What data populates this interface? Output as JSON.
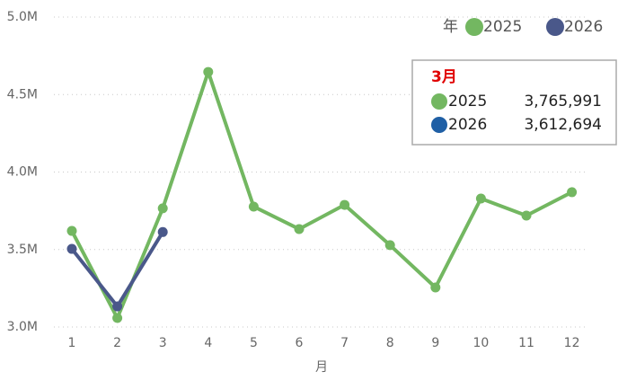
{
  "chart_data": {
    "type": "line",
    "x_label": "月",
    "categories": [
      "1",
      "2",
      "3",
      "4",
      "5",
      "6",
      "7",
      "8",
      "9",
      "10",
      "11",
      "12"
    ],
    "series": [
      {
        "name": "2025",
        "color": "#73b761",
        "values": [
          3620000,
          3058000,
          3765991,
          4646000,
          3777000,
          3632000,
          3788000,
          3528000,
          3255000,
          3829000,
          3719000,
          3870000
        ],
        "value_labels": [
          null,
          null,
          "3,765,991",
          null,
          null,
          null,
          null,
          null,
          null,
          null,
          null,
          null
        ]
      },
      {
        "name": "2026",
        "color": "#4a588a",
        "values": [
          3504000,
          3133000,
          3612694,
          null,
          null,
          null,
          null,
          null,
          null,
          null,
          null,
          null
        ],
        "value_labels": [
          null,
          null,
          "3,612,694",
          null,
          null,
          null,
          null,
          null,
          null,
          null,
          null,
          null
        ]
      }
    ],
    "ylim": [
      3000000,
      5000000
    ],
    "yticks": [
      {
        "value": 3000000,
        "label": "3.0M"
      },
      {
        "value": 3500000,
        "label": "3.5M"
      },
      {
        "value": 4000000,
        "label": "4.0M"
      },
      {
        "value": 4500000,
        "label": "4.5M"
      },
      {
        "value": 5000000,
        "label": "5.0M"
      }
    ],
    "grid": true,
    "legend": {
      "title": "年",
      "position": "top-right"
    },
    "tooltip": {
      "title": "3月",
      "marker_colors": [
        "#73b761",
        "#1f5fa5"
      ]
    }
  }
}
